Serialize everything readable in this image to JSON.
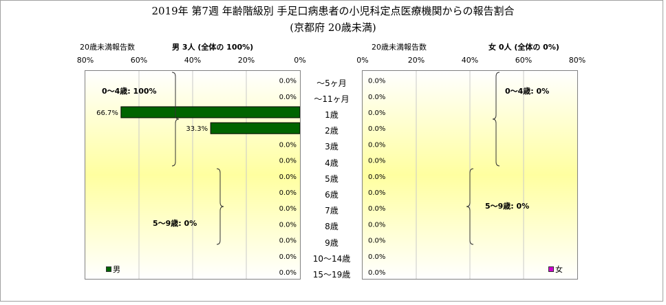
{
  "title_line1": "2019年 第7週 年齢階級別 手足口病患者の小児科定点医療機関からの報告割合",
  "title_line2": "(京都府 20歳未満)",
  "male": {
    "header_left": "20歳未満報告数",
    "header_right": "男  3人 (全体の 100%)",
    "legend": "男",
    "group1_label": "0～4歳: 100%",
    "group2_label": "5～9歳: 0%",
    "color": "#006400"
  },
  "female": {
    "header_left": "20歳未満報告数",
    "header_right": "女  0人 (全体の  0%)",
    "legend": "女",
    "group1_label": "0～4歳: 0%",
    "group2_label": "5～9歳: 0%",
    "color": "#cc00cc"
  },
  "chart_data": [
    {
      "type": "bar",
      "orientation": "horizontal-reversed",
      "series": [
        {
          "name": "男",
          "values": [
            0,
            0,
            66.7,
            33.3,
            0,
            0,
            0,
            0,
            0,
            0,
            0,
            0,
            0
          ]
        }
      ],
      "value_labels": [
        "0.0%",
        "0.0%",
        "66.7%",
        "33.3%",
        "0.0%",
        "0.0%",
        "0.0%",
        "0.0%",
        "0.0%",
        "0.0%",
        "0.0%",
        "0.0%",
        "0.0%"
      ],
      "categories": [
        "～5ヶ月",
        "～11ヶ月",
        "1歳",
        "2歳",
        "3歳",
        "4歳",
        "5歳",
        "6歳",
        "7歳",
        "8歳",
        "9歳",
        "10～14歳",
        "15～19歳"
      ],
      "xlim": [
        0,
        80
      ],
      "xticks": [
        "80%",
        "60%",
        "40%",
        "20%",
        "0%"
      ],
      "grid": true
    },
    {
      "type": "bar",
      "orientation": "horizontal",
      "series": [
        {
          "name": "女",
          "values": [
            0,
            0,
            0,
            0,
            0,
            0,
            0,
            0,
            0,
            0,
            0,
            0,
            0
          ]
        }
      ],
      "value_labels": [
        "0.0%",
        "0.0%",
        "0.0%",
        "0.0%",
        "0.0%",
        "0.0%",
        "0.0%",
        "0.0%",
        "0.0%",
        "0.0%",
        "0.0%",
        "0.0%",
        "0.0%"
      ],
      "categories": [
        "～5ヶ月",
        "～11ヶ月",
        "1歳",
        "2歳",
        "3歳",
        "4歳",
        "5歳",
        "6歳",
        "7歳",
        "8歳",
        "9歳",
        "10～14歳",
        "15～19歳"
      ],
      "xlim": [
        0,
        80
      ],
      "xticks": [
        "0%",
        "20%",
        "40%",
        "60%",
        "80%"
      ],
      "grid": true
    }
  ]
}
